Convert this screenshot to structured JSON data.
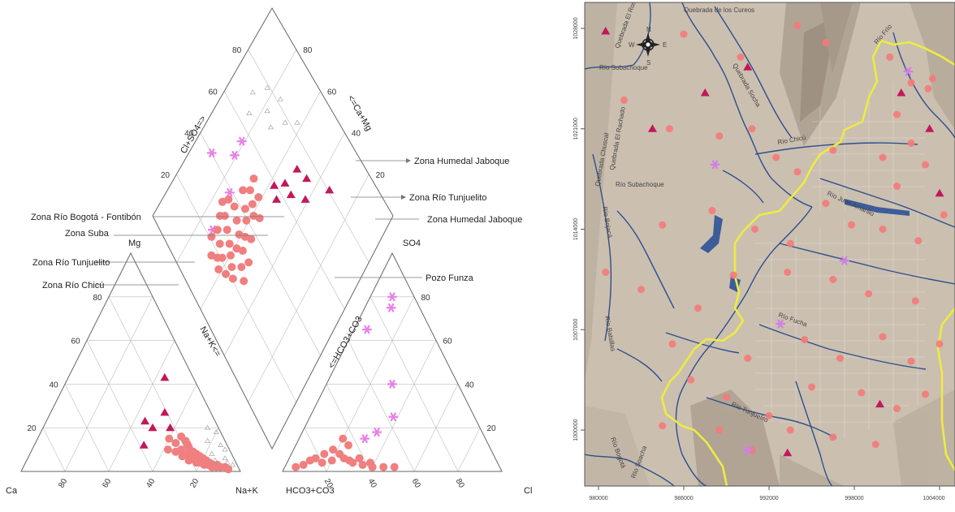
{
  "chart_data": [
    {
      "type": "scatter",
      "subtype": "piper-diagram",
      "apex_labels": {
        "ca": "Ca",
        "nak": "Na+K",
        "mg": "Mg",
        "hco3": "HCO3+CO3",
        "cl": "Cl",
        "so4": "SO4"
      },
      "axis_labels": {
        "cation_na_k": "Na+K<=",
        "diamond_cl_so4": "Cl+SO4=>",
        "diamond_ca_mg": "<=Ca+Mg",
        "diamond_hco3": "<=HCO3+CO3"
      },
      "ticks": [
        "20",
        "40",
        "60",
        "80"
      ],
      "annotations": [
        "Zona Humedal Jaboque",
        "Zona Río Tunjuelito",
        "Zona Humedal Jaboque",
        "Zona Río Bogotá - Fontibón",
        "Zona Suba",
        "Zona Río Tunjuelito",
        "Zona Río Chicú",
        "Pozo Funza"
      ],
      "series": [
        {
          "marker": "triangle",
          "color": "#c2185b",
          "cation": [
            [
              44,
              43
            ],
            [
              52,
              27
            ],
            [
              58,
              20
            ],
            [
              45,
              23
            ],
            [
              50,
              20
            ],
            [
              50,
              12
            ]
          ],
          "diamond": [
            [
              52,
              55
            ],
            [
              47,
              62
            ],
            [
              40,
              67
            ],
            [
              44,
              72
            ],
            [
              50,
              70
            ],
            [
              56,
              57
            ],
            [
              32,
              79
            ],
            [
              52,
              62
            ]
          ]
        },
        {
          "marker": "star",
          "color": "#e880e8",
          "cation": [
            [
              72,
              8
            ],
            [
              70,
              12
            ]
          ],
          "anion": [
            [
              10,
              80
            ],
            [
              12,
              75
            ],
            [
              6,
              65
            ],
            [
              30,
              40
            ],
            [
              38,
              25
            ],
            [
              34,
              18
            ],
            [
              30,
              15
            ]
          ],
          "diamond": [
            [
              79,
              53
            ],
            [
              79,
              47
            ],
            [
              89,
              38
            ],
            [
              73,
              37
            ],
            [
              72,
              22
            ]
          ]
        },
        {
          "marker": "circle",
          "color": "#f07f7f",
          "cation": [
            [
              60,
              15
            ],
            [
              65,
              16
            ],
            [
              68,
              14
            ],
            [
              70,
              12
            ],
            [
              72,
              10
            ],
            [
              74,
              9
            ],
            [
              76,
              8
            ],
            [
              78,
              7
            ],
            [
              80,
              6
            ],
            [
              82,
              5
            ],
            [
              84,
              4
            ],
            [
              86,
              3
            ],
            [
              88,
              2
            ],
            [
              62,
              10
            ],
            [
              66,
              9
            ],
            [
              70,
              7
            ],
            [
              74,
              5
            ],
            [
              78,
              4
            ],
            [
              82,
              3
            ],
            [
              86,
              2
            ],
            [
              90,
              2
            ],
            [
              64,
              13
            ],
            [
              68,
              10
            ],
            [
              72,
              8
            ],
            [
              76,
              6
            ],
            [
              80,
              4
            ],
            [
              84,
              3
            ],
            [
              88,
              3
            ],
            [
              92,
              2
            ],
            [
              94,
              1
            ]
          ],
          "anion": [
            [
              20,
              15
            ],
            [
              18,
              10
            ],
            [
              15,
              8
            ],
            [
              12,
              6
            ],
            [
              10,
              5
            ],
            [
              22,
              8
            ],
            [
              25,
              6
            ],
            [
              28,
              5
            ],
            [
              30,
              4
            ],
            [
              35,
              3
            ],
            [
              40,
              2
            ],
            [
              45,
              2
            ],
            [
              16,
              4
            ],
            [
              8,
              3
            ],
            [
              5,
              2
            ],
            [
              24,
              12
            ],
            [
              20,
              5
            ],
            [
              32,
              6
            ],
            [
              38,
              4
            ],
            [
              50,
              2
            ]
          ],
          "diamond": [
            [
              58,
              28
            ],
            [
              60,
              32
            ],
            [
              62,
              26
            ],
            [
              66,
              28
            ],
            [
              64,
              34
            ],
            [
              60,
              38
            ],
            [
              57,
              34
            ],
            [
              55,
              30
            ],
            [
              63,
              40
            ],
            [
              68,
              36
            ],
            [
              70,
              30
            ],
            [
              72,
              28
            ],
            [
              59,
              24
            ],
            [
              56,
              22
            ],
            [
              62,
              20
            ],
            [
              52,
              26
            ],
            [
              54,
              36
            ],
            [
              58,
              42
            ],
            [
              61,
              44
            ],
            [
              65,
              46
            ],
            [
              68,
              43
            ],
            [
              66,
              22
            ],
            [
              64,
              18
            ],
            [
              70,
              24
            ],
            [
              55,
              44
            ],
            [
              60,
              48
            ],
            [
              66,
              50
            ],
            [
              72,
              35
            ],
            [
              74,
              32
            ],
            [
              50,
              30
            ],
            [
              48,
              24
            ],
            [
              53,
              20
            ],
            [
              57,
              18
            ],
            [
              61,
              16
            ],
            [
              67,
              16
            ],
            [
              71,
              20
            ]
          ]
        },
        {
          "marker": "open-triangle",
          "color": "#999999",
          "cation": [
            [
              80,
              18
            ],
            [
              85,
              12
            ],
            [
              88,
              10
            ],
            [
              90,
              6
            ],
            [
              83,
              8
            ],
            [
              86,
              5
            ],
            [
              75,
              20
            ],
            [
              92,
              4
            ],
            [
              95,
              3
            ],
            [
              78,
              14
            ]
          ],
          "diamond": [
            [
              75,
              70
            ],
            [
              70,
              68
            ],
            [
              65,
              75
            ],
            [
              60,
              80
            ],
            [
              72,
              78
            ],
            [
              80,
              75
            ],
            [
              85,
              68
            ],
            [
              82,
              62
            ]
          ]
        }
      ]
    },
    {
      "type": "map",
      "x_ticks": [
        "980000",
        "986000",
        "992000",
        "998000",
        "1004000"
      ],
      "y_ticks": [
        "1028000",
        "1021000",
        "1014000",
        "1007000",
        "1000000"
      ],
      "compass": [
        "N",
        "S",
        "E",
        "W"
      ],
      "place_labels": [
        "Quebrada de los Cureos",
        "Quebrada El Rosal",
        "Río Subachoque",
        "Quebrada Socha",
        "Río Chicú",
        "Quebrada Chuscal",
        "Río Subachoque",
        "Quebrada El Rachado",
        "Río Bojacá",
        "Río Juan Amarillo",
        "Río Frío",
        "Río Fucha",
        "Río Tunjuelito",
        "Río Balsillas",
        "Río Bogotá",
        "Río Soacha"
      ],
      "points": [
        {
          "marker": "circle",
          "color": "#f47a7a",
          "xy": [
            [
              986000,
              1027600
            ],
            [
              990000,
              1026000
            ],
            [
              994000,
              1028200
            ],
            [
              996000,
              1027000
            ],
            [
              1000500,
              1026000
            ],
            [
              1002000,
              1024200
            ],
            [
              1001000,
              1022000
            ],
            [
              1003500,
              1024500
            ],
            [
              981800,
              1023000
            ],
            [
              985000,
              1021000
            ],
            [
              988500,
              1020500
            ],
            [
              990800,
              1021000
            ],
            [
              992500,
              1019000
            ],
            [
              994000,
              1018000
            ],
            [
              996500,
              1019500
            ],
            [
              1000000,
              1019000
            ],
            [
              1002000,
              1020000
            ],
            [
              1003000,
              1018500
            ],
            [
              1001000,
              1017000
            ],
            [
              984500,
              1014300
            ],
            [
              988000,
              1015300
            ],
            [
              991000,
              1014000
            ],
            [
              993500,
              1013000
            ],
            [
              997800,
              1014300
            ],
            [
              1000000,
              1014000
            ],
            [
              1002500,
              1013200
            ],
            [
              1004300,
              1015000
            ],
            [
              980500,
              1011000
            ],
            [
              983000,
              1009800
            ],
            [
              987000,
              1008500
            ],
            [
              989500,
              1010800
            ],
            [
              993300,
              1011000
            ],
            [
              996500,
              1010500
            ],
            [
              999000,
              1009500
            ],
            [
              1002300,
              1009000
            ],
            [
              985200,
              1006000
            ],
            [
              990500,
              1005000
            ],
            [
              994500,
              1006300
            ],
            [
              997000,
              1005000
            ],
            [
              1000000,
              1006500
            ],
            [
              1002000,
              1004800
            ],
            [
              986500,
              1003500
            ],
            [
              989000,
              1002300
            ],
            [
              992000,
              1001000
            ],
            [
              995000,
              1003000
            ],
            [
              998500,
              1002600
            ],
            [
              1001000,
              1001500
            ],
            [
              984500,
              1000300
            ],
            [
              988500,
              1000000
            ],
            [
              990800,
              998600
            ],
            [
              993500,
              1000000
            ],
            [
              996500,
              999500
            ],
            [
              999500,
              999000
            ],
            [
              1003000,
              1002500
            ],
            [
              1004000,
              1006000
            ],
            [
              996000,
              1015800
            ],
            [
              1003200,
              1023800
            ]
          ]
        },
        {
          "marker": "triangle",
          "color": "#c2185b",
          "xy": [
            [
              980500,
              1027800
            ],
            [
              983800,
              1021000
            ],
            [
              987500,
              1023500
            ],
            [
              990500,
              1025300
            ],
            [
              1001300,
              1023500
            ],
            [
              1003300,
              1021000
            ],
            [
              1004000,
              1016500
            ],
            [
              999800,
              1001800
            ],
            [
              993300,
              998400
            ]
          ]
        },
        {
          "marker": "star",
          "color": "#cf7fe6",
          "xy": [
            [
              1001800,
              1025000
            ],
            [
              997300,
              1011800
            ],
            [
              992800,
              1007400
            ],
            [
              990500,
              998600
            ],
            [
              988200,
              1018500
            ]
          ]
        }
      ]
    }
  ]
}
